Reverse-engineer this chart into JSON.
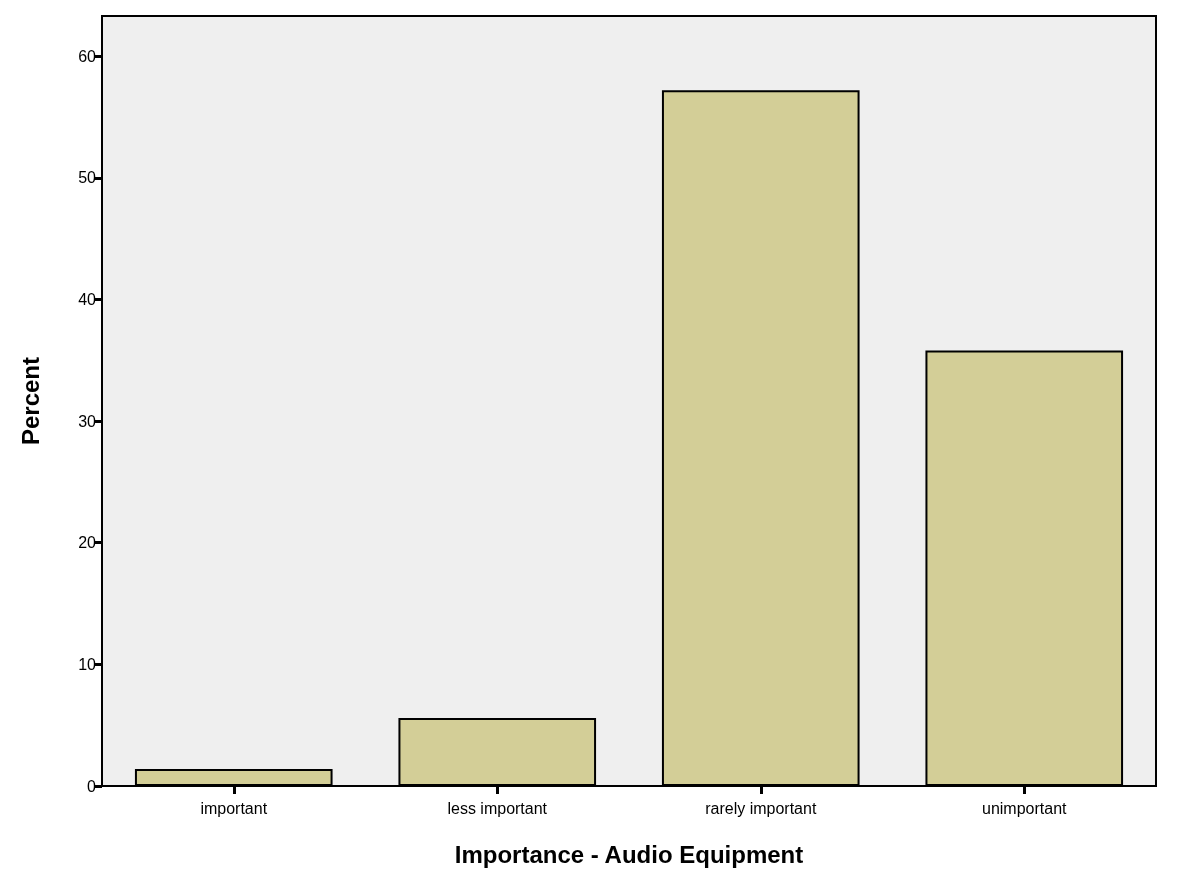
{
  "chart_data": {
    "type": "bar",
    "xlabel": "Importance - Audio Equipment",
    "ylabel": "Percent",
    "categories": [
      "important",
      "less important",
      "rarely important",
      "unimportant"
    ],
    "values": [
      1.4,
      5.6,
      57.2,
      35.8
    ],
    "color": "#d3ce97",
    "ylim": [
      0,
      63.3
    ],
    "yticks": [
      0,
      10,
      20,
      30,
      40,
      50,
      60
    ],
    "grid": false
  }
}
